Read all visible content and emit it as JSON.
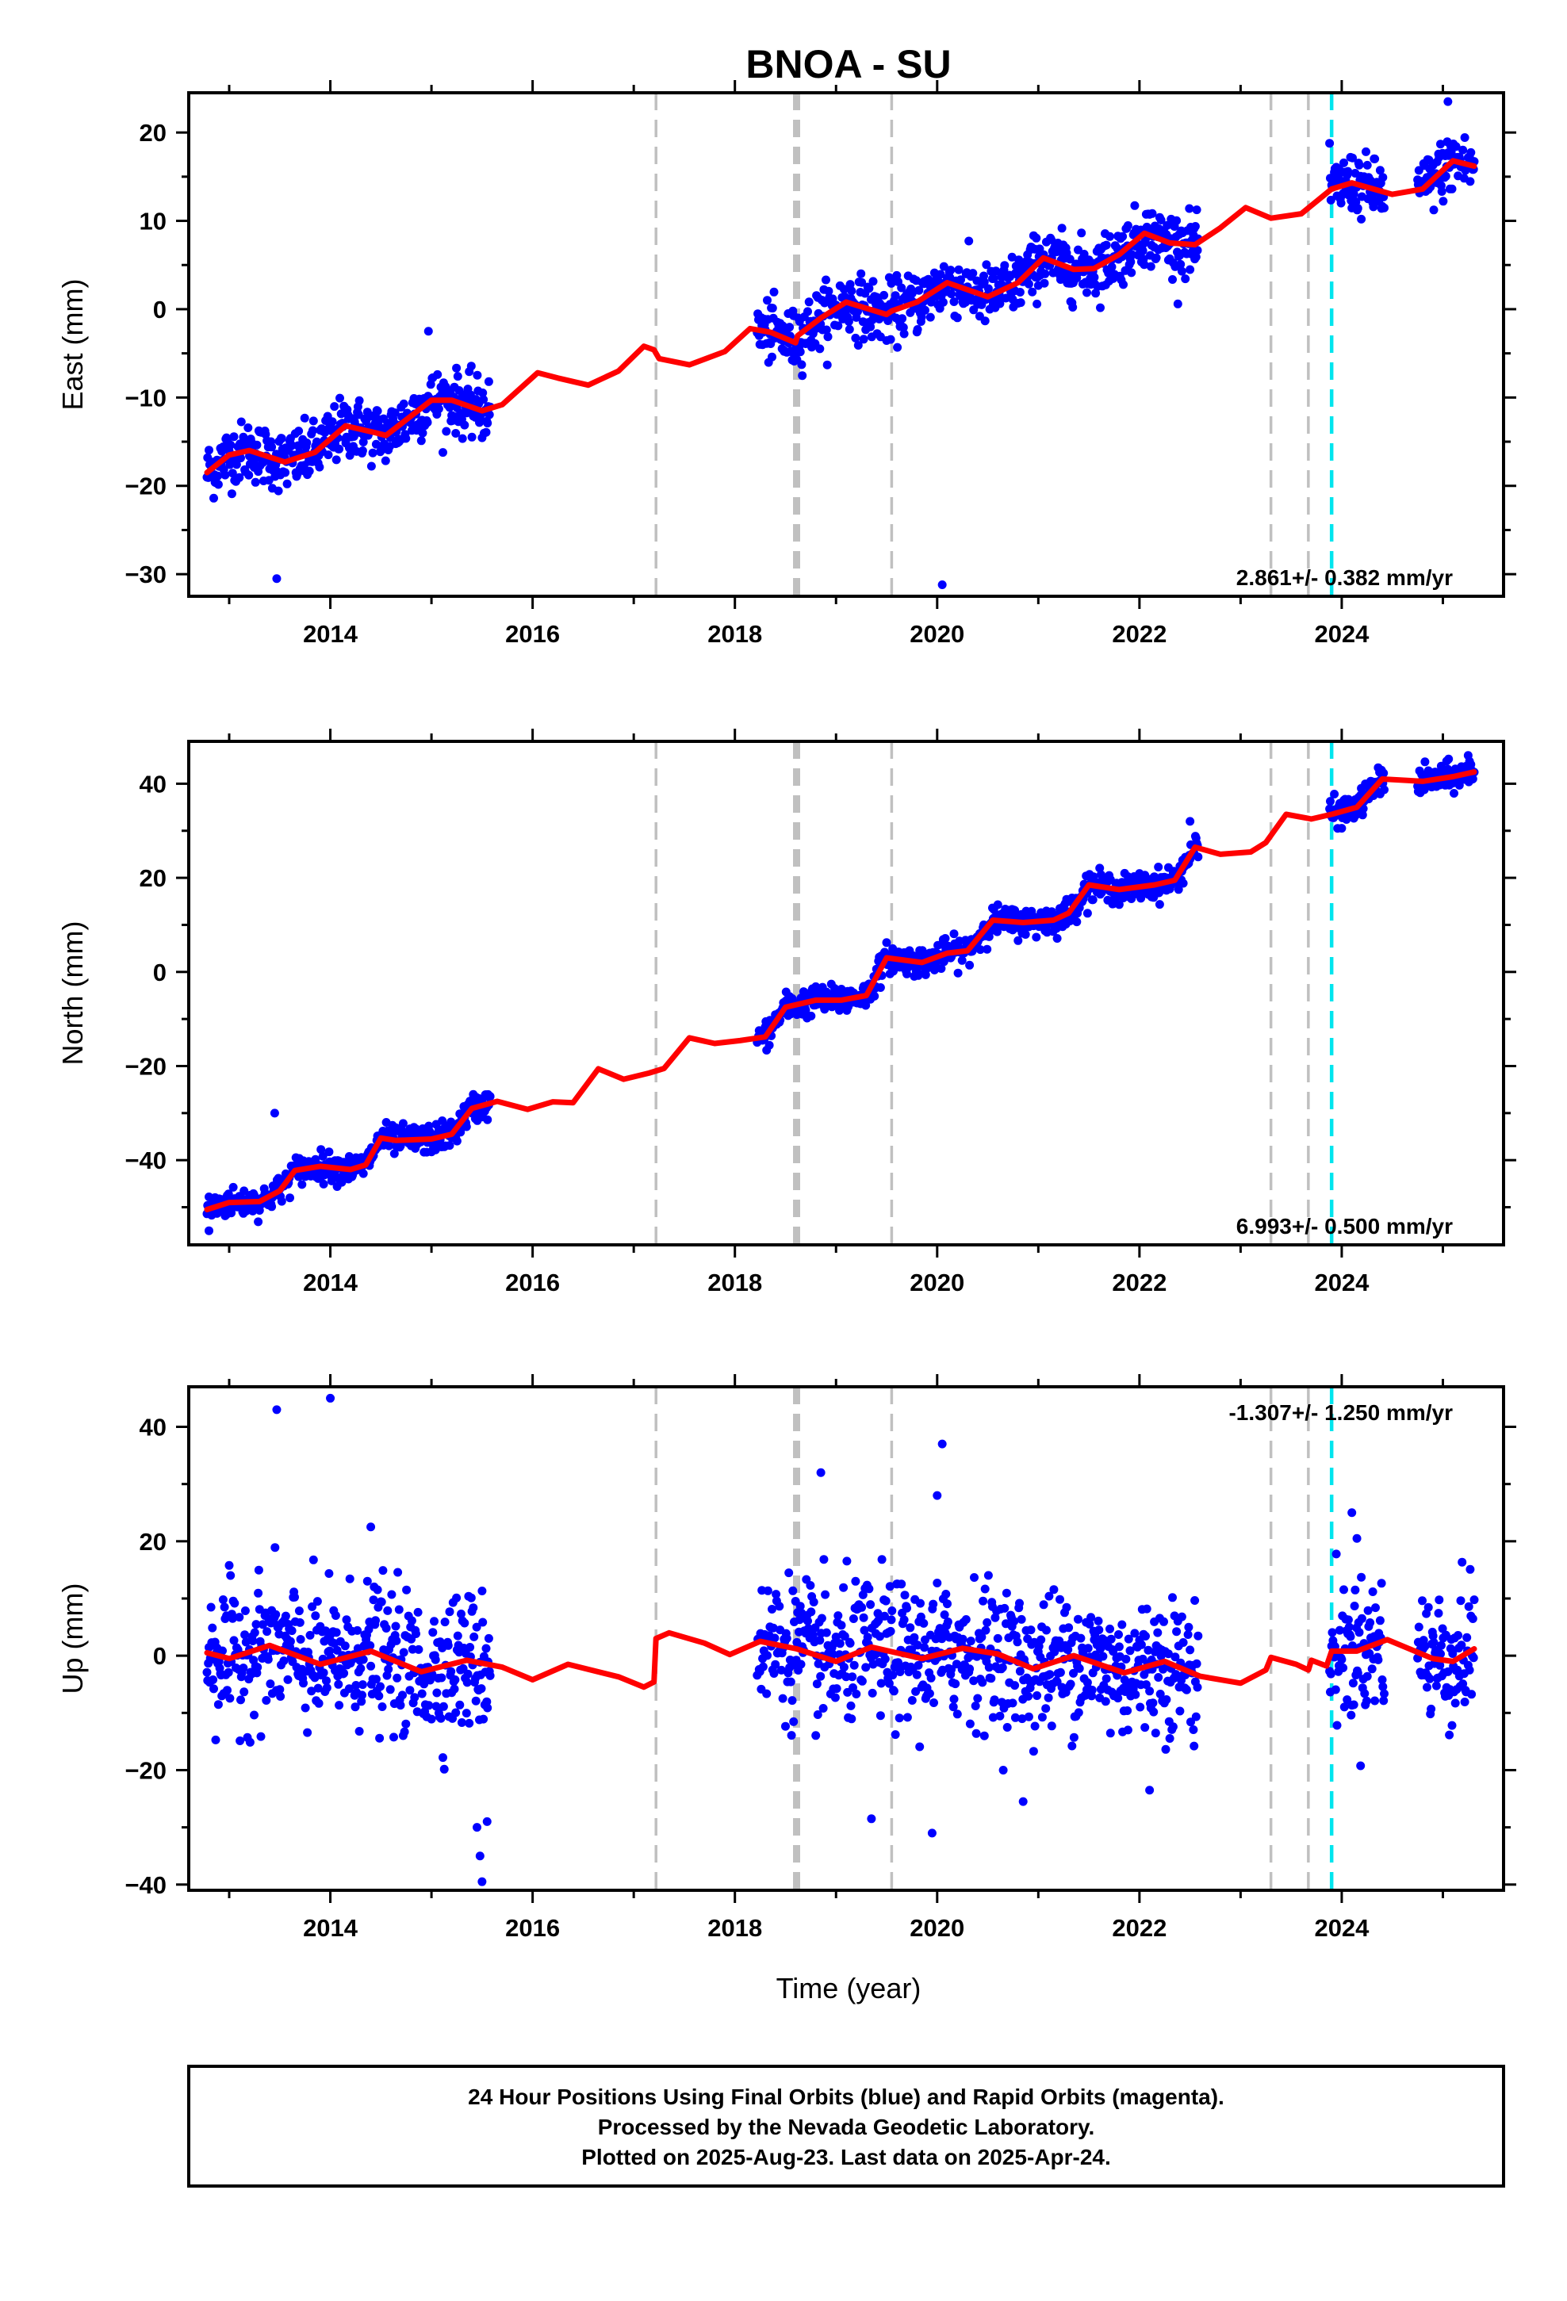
{
  "title": "BNOA - SU",
  "xlabel": "Time (year)",
  "colors": {
    "final_orbits": "#0000ff",
    "model": "#ff0000",
    "equipment_change": "#c0c0c0",
    "earthquake": "#00e5ee",
    "frame": "#000000"
  },
  "footer": {
    "line1": "24 Hour Positions Using Final Orbits (blue) and Rapid Orbits (magenta).",
    "line2": "Processed by the Nevada Geodetic Laboratory.",
    "line3": "Plotted on 2025-Aug-23. Last data on 2025-Apr-24."
  },
  "chart_data": [
    {
      "type": "scatter",
      "component": "east",
      "ylabel": "East (mm)",
      "rate_label": "2.861+/- 0.382 mm/yr",
      "xlim": [
        2012.6,
        2025.6
      ],
      "ylim": [
        -32.5,
        24.5
      ],
      "xticks": [
        2014,
        2016,
        2018,
        2020,
        2022,
        2024
      ],
      "yticks": [
        -30,
        -20,
        -10,
        0,
        10,
        20
      ],
      "grid": false,
      "rate_mm_per_yr": 2.861,
      "data_segments": [
        [
          2012.78,
          2015.58
        ],
        [
          2018.22,
          2022.58
        ],
        [
          2023.88,
          2024.42
        ],
        [
          2024.75,
          2025.31
        ]
      ],
      "scatter_sigma_mm": 1.7,
      "outliers": [
        {
          "x": 2013.47,
          "y": -30.5
        },
        {
          "x": 2020.05,
          "y": -31.2
        },
        {
          "x": 2014.97,
          "y": -2.5
        },
        {
          "x": 2025.05,
          "y": 23.5
        }
      ],
      "model_line": [
        {
          "x": 2012.78,
          "y": -18.5
        },
        {
          "x": 2013.0,
          "y": -16.5
        },
        {
          "x": 2013.2,
          "y": -16.0
        },
        {
          "x": 2013.55,
          "y": -17.3
        },
        {
          "x": 2013.85,
          "y": -16.2
        },
        {
          "x": 2014.15,
          "y": -13.2
        },
        {
          "x": 2014.45,
          "y": -14.0
        },
        {
          "x": 2014.55,
          "y": -14.3
        },
        {
          "x": 2015.0,
          "y": -10.3
        },
        {
          "x": 2015.2,
          "y": -10.3
        },
        {
          "x": 2015.5,
          "y": -11.5
        },
        {
          "x": 2015.7,
          "y": -10.8
        },
        {
          "x": 2016.05,
          "y": -7.2
        },
        {
          "x": 2016.25,
          "y": -7.8
        },
        {
          "x": 2016.55,
          "y": -8.6
        },
        {
          "x": 2016.85,
          "y": -7.0
        },
        {
          "x": 2017.1,
          "y": -4.2
        },
        {
          "x": 2017.2,
          "y": -4.6
        },
        {
          "x": 2017.25,
          "y": -5.6
        },
        {
          "x": 2017.55,
          "y": -6.3
        },
        {
          "x": 2017.9,
          "y": -4.8
        },
        {
          "x": 2018.15,
          "y": -2.2
        },
        {
          "x": 2018.35,
          "y": -2.6
        },
        {
          "x": 2018.6,
          "y": -3.8
        },
        {
          "x": 2018.62,
          "y": -3.0
        },
        {
          "x": 2018.85,
          "y": -1.0
        },
        {
          "x": 2019.1,
          "y": 0.8
        },
        {
          "x": 2019.5,
          "y": -0.6
        },
        {
          "x": 2019.55,
          "y": -0.2
        },
        {
          "x": 2019.8,
          "y": 0.8
        },
        {
          "x": 2020.1,
          "y": 3.0
        },
        {
          "x": 2020.5,
          "y": 1.4
        },
        {
          "x": 2020.8,
          "y": 3.0
        },
        {
          "x": 2021.05,
          "y": 5.8
        },
        {
          "x": 2021.35,
          "y": 4.5
        },
        {
          "x": 2021.55,
          "y": 4.6
        },
        {
          "x": 2021.8,
          "y": 6.2
        },
        {
          "x": 2022.05,
          "y": 8.6
        },
        {
          "x": 2022.3,
          "y": 7.5
        },
        {
          "x": 2022.55,
          "y": 7.3
        },
        {
          "x": 2022.8,
          "y": 9.2
        },
        {
          "x": 2023.05,
          "y": 11.5
        },
        {
          "x": 2023.3,
          "y": 10.3
        },
        {
          "x": 2023.6,
          "y": 10.8
        },
        {
          "x": 2023.9,
          "y": 13.6
        },
        {
          "x": 2024.1,
          "y": 14.3
        },
        {
          "x": 2024.5,
          "y": 13.0
        },
        {
          "x": 2024.8,
          "y": 13.6
        },
        {
          "x": 2025.1,
          "y": 16.8
        },
        {
          "x": 2025.31,
          "y": 16.2
        }
      ],
      "equipment_changes": [
        2017.22,
        2018.61,
        2019.55,
        2023.3,
        2023.67
      ],
      "earthquakes": [
        2023.9
      ]
    },
    {
      "type": "scatter",
      "component": "north",
      "ylabel": "North (mm)",
      "rate_label": "6.993+/- 0.500 mm/yr",
      "xlim": [
        2012.6,
        2025.6
      ],
      "ylim": [
        -58,
        49
      ],
      "xticks": [
        2014,
        2016,
        2018,
        2020,
        2022,
        2024
      ],
      "yticks": [
        -40,
        -20,
        0,
        20,
        40
      ],
      "grid": false,
      "rate_mm_per_yr": 6.993,
      "data_segments": [
        [
          2012.78,
          2015.58
        ],
        [
          2018.22,
          2022.58
        ],
        [
          2023.88,
          2024.42
        ],
        [
          2024.75,
          2025.31
        ]
      ],
      "scatter_sigma_mm": 1.5,
      "outliers": [
        {
          "x": 2012.8,
          "y": -55
        },
        {
          "x": 2013.45,
          "y": -30
        },
        {
          "x": 2022.5,
          "y": 32
        },
        {
          "x": 2025.25,
          "y": 46
        }
      ],
      "model_line": [
        {
          "x": 2012.78,
          "y": -50.5
        },
        {
          "x": 2013.0,
          "y": -49.0
        },
        {
          "x": 2013.3,
          "y": -48.8
        },
        {
          "x": 2013.5,
          "y": -46.5
        },
        {
          "x": 2013.65,
          "y": -42.2
        },
        {
          "x": 2013.9,
          "y": -41.3
        },
        {
          "x": 2014.2,
          "y": -42.0
        },
        {
          "x": 2014.35,
          "y": -41.0
        },
        {
          "x": 2014.5,
          "y": -35.3
        },
        {
          "x": 2014.65,
          "y": -35.8
        },
        {
          "x": 2015.0,
          "y": -35.5
        },
        {
          "x": 2015.2,
          "y": -34.5
        },
        {
          "x": 2015.4,
          "y": -29.0
        },
        {
          "x": 2015.65,
          "y": -27.5
        },
        {
          "x": 2015.95,
          "y": -29.2
        },
        {
          "x": 2016.2,
          "y": -27.6
        },
        {
          "x": 2016.4,
          "y": -27.8
        },
        {
          "x": 2016.65,
          "y": -20.6
        },
        {
          "x": 2016.9,
          "y": -22.8
        },
        {
          "x": 2017.15,
          "y": -21.5
        },
        {
          "x": 2017.3,
          "y": -20.5
        },
        {
          "x": 2017.55,
          "y": -14.0
        },
        {
          "x": 2017.8,
          "y": -15.2
        },
        {
          "x": 2018.05,
          "y": -14.6
        },
        {
          "x": 2018.3,
          "y": -13.8
        },
        {
          "x": 2018.5,
          "y": -7.5
        },
        {
          "x": 2018.8,
          "y": -6.0
        },
        {
          "x": 2019.05,
          "y": -6.0
        },
        {
          "x": 2019.3,
          "y": -5.0
        },
        {
          "x": 2019.5,
          "y": 3.0
        },
        {
          "x": 2019.85,
          "y": 2.0
        },
        {
          "x": 2020.1,
          "y": 4.0
        },
        {
          "x": 2020.3,
          "y": 4.5
        },
        {
          "x": 2020.55,
          "y": 11.0
        },
        {
          "x": 2020.85,
          "y": 10.5
        },
        {
          "x": 2021.15,
          "y": 11.0
        },
        {
          "x": 2021.3,
          "y": 12.5
        },
        {
          "x": 2021.5,
          "y": 18.5
        },
        {
          "x": 2021.8,
          "y": 17.5
        },
        {
          "x": 2022.15,
          "y": 18.5
        },
        {
          "x": 2022.35,
          "y": 19.5
        },
        {
          "x": 2022.55,
          "y": 26.5
        },
        {
          "x": 2022.8,
          "y": 25.0
        },
        {
          "x": 2023.1,
          "y": 25.5
        },
        {
          "x": 2023.25,
          "y": 27.5
        },
        {
          "x": 2023.45,
          "y": 33.5
        },
        {
          "x": 2023.7,
          "y": 32.5
        },
        {
          "x": 2023.9,
          "y": 33.5
        },
        {
          "x": 2024.15,
          "y": 35.0
        },
        {
          "x": 2024.4,
          "y": 41.0
        },
        {
          "x": 2024.8,
          "y": 40.5
        },
        {
          "x": 2025.1,
          "y": 41.5
        },
        {
          "x": 2025.31,
          "y": 42.5
        }
      ],
      "equipment_changes": [
        2017.22,
        2018.61,
        2019.55,
        2023.3,
        2023.67
      ],
      "earthquakes": [
        2023.9
      ]
    },
    {
      "type": "scatter",
      "component": "up",
      "ylabel": "Up (mm)",
      "rate_label": "-1.307+/- 1.250 mm/yr",
      "xlim": [
        2012.6,
        2025.6
      ],
      "ylim": [
        -41,
        47
      ],
      "xticks": [
        2014,
        2016,
        2018,
        2020,
        2022,
        2024
      ],
      "yticks": [
        -40,
        -20,
        0,
        20,
        40
      ],
      "grid": false,
      "rate_mm_per_yr": -1.307,
      "data_segments": [
        [
          2012.78,
          2015.58
        ],
        [
          2018.22,
          2022.58
        ],
        [
          2023.88,
          2024.42
        ],
        [
          2024.75,
          2025.31
        ]
      ],
      "scatter_sigma_mm": 6.0,
      "outliers": [
        {
          "x": 2013.47,
          "y": 43
        },
        {
          "x": 2014.0,
          "y": 45
        },
        {
          "x": 2014.4,
          "y": 22.5
        },
        {
          "x": 2015.45,
          "y": -30
        },
        {
          "x": 2015.48,
          "y": -35
        },
        {
          "x": 2015.5,
          "y": -39.5
        },
        {
          "x": 2015.55,
          "y": -29
        },
        {
          "x": 2018.85,
          "y": 32
        },
        {
          "x": 2020.05,
          "y": 37
        },
        {
          "x": 2019.95,
          "y": -31
        },
        {
          "x": 2019.35,
          "y": -28.5
        },
        {
          "x": 2020.0,
          "y": 28
        },
        {
          "x": 2024.1,
          "y": 25
        },
        {
          "x": 2024.15,
          "y": 20.5
        },
        {
          "x": 2022.1,
          "y": -23.5
        },
        {
          "x": 2020.85,
          "y": -25.5
        }
      ],
      "model_line": [
        {
          "x": 2012.78,
          "y": 0.5
        },
        {
          "x": 2013.0,
          "y": -0.5
        },
        {
          "x": 2013.4,
          "y": 1.8
        },
        {
          "x": 2013.9,
          "y": -1.5
        },
        {
          "x": 2014.4,
          "y": 0.8
        },
        {
          "x": 2014.9,
          "y": -2.8
        },
        {
          "x": 2015.35,
          "y": -0.8
        },
        {
          "x": 2015.7,
          "y": -2.0
        },
        {
          "x": 2016.0,
          "y": -4.2
        },
        {
          "x": 2016.35,
          "y": -1.5
        },
        {
          "x": 2016.85,
          "y": -3.7
        },
        {
          "x": 2017.1,
          "y": -5.5
        },
        {
          "x": 2017.2,
          "y": -4.6
        },
        {
          "x": 2017.22,
          "y": 3.0
        },
        {
          "x": 2017.35,
          "y": 4.0
        },
        {
          "x": 2017.7,
          "y": 2.2
        },
        {
          "x": 2017.95,
          "y": 0.2
        },
        {
          "x": 2018.25,
          "y": 2.5
        },
        {
          "x": 2018.61,
          "y": 1.2
        },
        {
          "x": 2019.0,
          "y": -1.0
        },
        {
          "x": 2019.35,
          "y": 1.5
        },
        {
          "x": 2019.85,
          "y": -0.5
        },
        {
          "x": 2020.25,
          "y": 1.3
        },
        {
          "x": 2020.6,
          "y": 0.3
        },
        {
          "x": 2020.95,
          "y": -2.3
        },
        {
          "x": 2021.35,
          "y": 0.0
        },
        {
          "x": 2021.85,
          "y": -3.0
        },
        {
          "x": 2022.25,
          "y": -1.0
        },
        {
          "x": 2022.6,
          "y": -3.6
        },
        {
          "x": 2023.0,
          "y": -4.8
        },
        {
          "x": 2023.25,
          "y": -2.5
        },
        {
          "x": 2023.3,
          "y": -0.3
        },
        {
          "x": 2023.55,
          "y": -1.5
        },
        {
          "x": 2023.67,
          "y": -2.5
        },
        {
          "x": 2023.7,
          "y": -0.8
        },
        {
          "x": 2023.85,
          "y": -1.8
        },
        {
          "x": 2023.9,
          "y": 0.8
        },
        {
          "x": 2024.15,
          "y": 0.8
        },
        {
          "x": 2024.45,
          "y": 2.8
        },
        {
          "x": 2024.9,
          "y": -0.5
        },
        {
          "x": 2025.1,
          "y": -1.0
        },
        {
          "x": 2025.31,
          "y": 1.2
        }
      ],
      "equipment_changes": [
        2017.22,
        2018.61,
        2019.55,
        2023.3,
        2023.67
      ],
      "earthquakes": [
        2023.9
      ]
    }
  ]
}
